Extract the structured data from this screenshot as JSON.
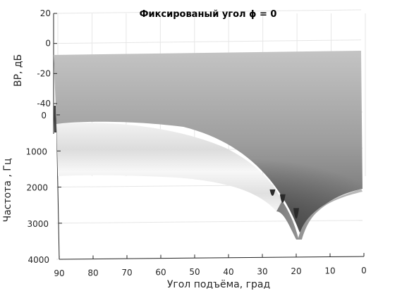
{
  "chart_data": {
    "type": "surface",
    "title": "Фиксированый угол ϕ = 0",
    "xlabel": "Угол подъёма, град",
    "ylabel": "Частота , Гц",
    "zlabel": "ВР, дБ",
    "xlim": [
      90,
      0
    ],
    "ylim": [
      0,
      4000
    ],
    "zlim": [
      -40,
      20
    ],
    "x_ticks": [
      "90",
      "80",
      "70",
      "60",
      "50",
      "40",
      "30",
      "20",
      "10",
      "0"
    ],
    "y_ticks": [
      "0",
      "1000",
      "2000",
      "3000",
      "4000"
    ],
    "z_ticks": [
      "20",
      "0",
      "-20",
      "-40"
    ],
    "grid": true,
    "colormap": "gray",
    "notches": [
      {
        "elevation": 27,
        "frequency": 2350
      },
      {
        "elevation": 24,
        "frequency": 2600
      },
      {
        "elevation": 20,
        "frequency": 3100
      }
    ]
  }
}
